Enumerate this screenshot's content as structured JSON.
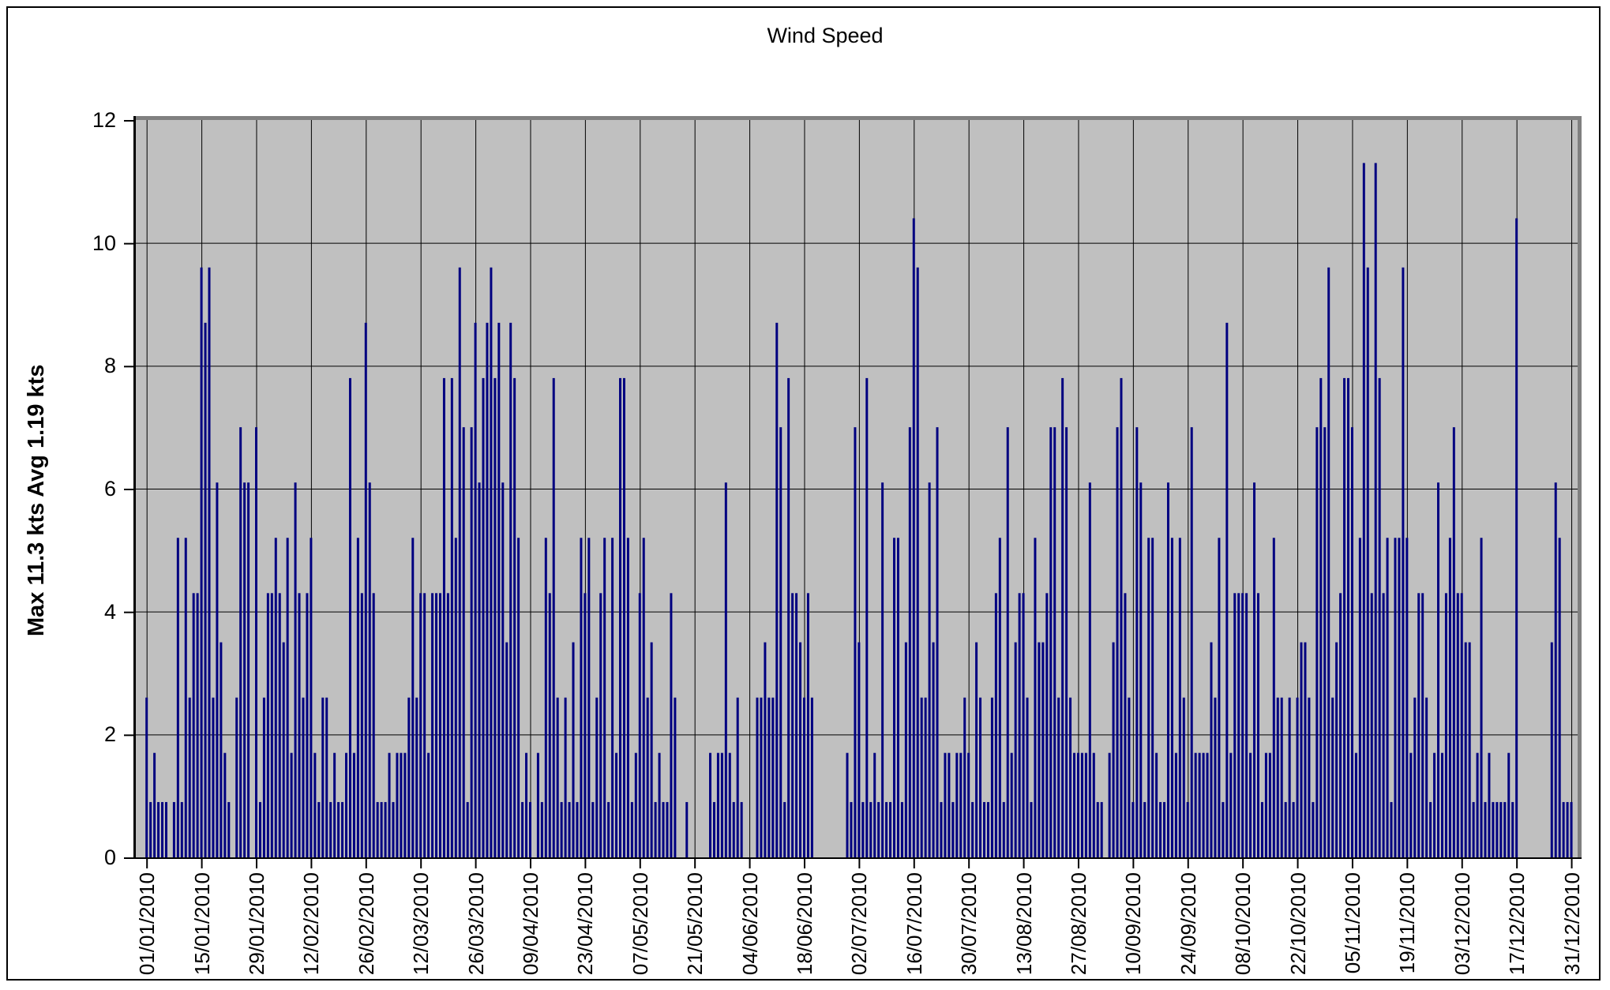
{
  "chart_data": {
    "type": "bar",
    "title": "Wind Speed",
    "ylabel": "Max 11.3 kts Avg 1.19 kts",
    "xlabel": "",
    "ylim": [
      0,
      12
    ],
    "y_ticks": [
      0,
      2,
      4,
      6,
      8,
      10,
      12
    ],
    "grid": true,
    "legend_visible": false,
    "x_tick_interval_days": 14,
    "x_tick_labels": [
      "01/01/2010",
      "15/01/2010",
      "29/01/2010",
      "12/02/2010",
      "26/02/2010",
      "12/03/2010",
      "26/03/2010",
      "09/04/2010",
      "23/04/2010",
      "07/05/2010",
      "21/05/2010",
      "04/06/2010",
      "18/06/2010",
      "02/07/2010",
      "16/07/2010",
      "30/07/2010",
      "13/08/2010",
      "27/08/2010",
      "10/09/2010",
      "24/09/2010",
      "08/10/2010",
      "22/10/2010",
      "05/11/2010",
      "19/11/2010",
      "03/12/2010",
      "17/12/2010",
      "31/12/2010"
    ],
    "series_start_date": "01/01/2010",
    "max_value": 11.3,
    "avg_value": 1.19,
    "colors": {
      "bar": "#000080",
      "plot_background": "#c0c0c0",
      "gridline": "#000000",
      "plot_border": "#808080",
      "axis": "#000000",
      "chart_background": "#ffffff",
      "outer_border": "#000000"
    },
    "values": [
      2.6,
      0.9,
      1.7,
      0.9,
      0.9,
      0.9,
      0,
      0.9,
      5.2,
      0.9,
      5.2,
      2.6,
      4.3,
      4.3,
      9.6,
      8.7,
      9.6,
      2.6,
      6.1,
      3.5,
      1.7,
      0.9,
      0,
      2.6,
      7.0,
      6.1,
      6.1,
      0,
      7.0,
      0.9,
      2.6,
      4.3,
      4.3,
      5.2,
      4.3,
      3.5,
      5.2,
      1.7,
      6.1,
      4.3,
      2.6,
      4.3,
      5.2,
      1.7,
      0.9,
      2.6,
      2.6,
      0.9,
      1.7,
      0.9,
      0.9,
      1.7,
      7.8,
      1.7,
      5.2,
      4.3,
      8.7,
      6.1,
      4.3,
      0.9,
      0.9,
      0.9,
      1.7,
      0.9,
      1.7,
      1.7,
      1.7,
      2.6,
      5.2,
      2.6,
      4.3,
      4.3,
      1.7,
      4.3,
      4.3,
      4.3,
      7.8,
      4.3,
      7.8,
      5.2,
      9.6,
      7.0,
      0.9,
      7.0,
      8.7,
      6.1,
      7.8,
      8.7,
      9.6,
      7.8,
      8.7,
      6.1,
      3.5,
      8.7,
      7.8,
      5.2,
      0.9,
      1.7,
      0.9,
      0,
      1.7,
      0.9,
      5.2,
      4.3,
      7.8,
      2.6,
      0.9,
      2.6,
      0.9,
      3.5,
      0.9,
      5.2,
      4.3,
      5.2,
      0.9,
      2.6,
      4.3,
      5.2,
      0.9,
      5.2,
      1.7,
      7.8,
      7.8,
      5.2,
      0.9,
      1.7,
      4.3,
      5.2,
      2.6,
      3.5,
      0.9,
      1.7,
      0.9,
      0.9,
      4.3,
      2.6,
      0,
      0,
      0.9,
      0,
      0,
      0,
      0,
      0,
      1.7,
      0.9,
      1.7,
      1.7,
      6.1,
      1.7,
      0.9,
      2.6,
      0.9,
      0,
      0,
      0,
      2.6,
      2.6,
      3.5,
      2.6,
      2.6,
      8.7,
      7.0,
      0.9,
      7.8,
      4.3,
      4.3,
      3.5,
      2.6,
      4.3,
      2.6,
      0,
      0,
      0,
      0,
      0,
      0,
      0,
      0,
      1.7,
      0.9,
      7.0,
      3.5,
      0.9,
      7.8,
      0.9,
      1.7,
      0.9,
      6.1,
      0.9,
      0.9,
      5.2,
      5.2,
      0.9,
      3.5,
      7.0,
      10.4,
      9.6,
      2.6,
      2.6,
      6.1,
      3.5,
      7.0,
      0.9,
      1.7,
      1.7,
      0.9,
      1.7,
      1.7,
      2.6,
      1.7,
      0.9,
      3.5,
      2.6,
      0.9,
      0.9,
      2.6,
      4.3,
      5.2,
      0.9,
      7.0,
      1.7,
      3.5,
      4.3,
      4.3,
      2.6,
      0.9,
      5.2,
      3.5,
      3.5,
      4.3,
      7.0,
      7.0,
      2.6,
      7.8,
      7.0,
      2.6,
      1.7,
      1.7,
      1.7,
      1.7,
      6.1,
      1.7,
      0.9,
      0.9,
      0,
      1.7,
      3.5,
      7.0,
      7.8,
      4.3,
      2.6,
      0.9,
      7.0,
      6.1,
      0.9,
      5.2,
      5.2,
      1.7,
      0.9,
      0.9,
      6.1,
      5.2,
      1.7,
      5.2,
      2.6,
      0.9,
      7.0,
      1.7,
      1.7,
      1.7,
      1.7,
      3.5,
      2.6,
      5.2,
      0.9,
      8.7,
      1.7,
      4.3,
      4.3,
      4.3,
      4.3,
      1.7,
      6.1,
      4.3,
      0.9,
      1.7,
      1.7,
      5.2,
      2.6,
      2.6,
      0.9,
      2.6,
      0.9,
      2.6,
      3.5,
      3.5,
      2.6,
      0.9,
      7.0,
      7.8,
      7.0,
      9.6,
      2.6,
      3.5,
      4.3,
      7.8,
      7.8,
      7.0,
      1.7,
      5.2,
      11.3,
      9.6,
      4.3,
      11.3,
      7.8,
      4.3,
      5.2,
      0.9,
      5.2,
      5.2,
      9.6,
      5.2,
      1.7,
      2.6,
      4.3,
      4.3,
      2.6,
      0.9,
      1.7,
      6.1,
      1.7,
      4.3,
      5.2,
      7.0,
      4.3,
      4.3,
      3.5,
      3.5,
      0.9,
      1.7,
      5.2,
      0.9,
      1.7,
      0.9,
      0.9,
      0.9,
      0.9,
      1.7,
      0.9,
      10.4,
      0,
      0,
      0,
      0,
      0,
      0,
      0,
      0,
      3.5,
      6.1,
      5.2,
      0.9,
      0.9,
      0.9
    ]
  }
}
